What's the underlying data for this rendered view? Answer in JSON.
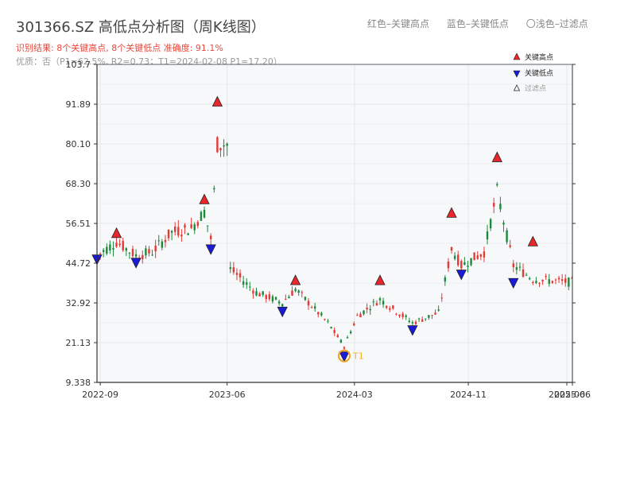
{
  "title": "301366.SZ 高低点分析图（周K线图）",
  "top_legend": {
    "red": "红色–关键高点",
    "blue": "蓝色–关键低点",
    "light": "〇浅色–过滤点"
  },
  "result_text": "识别结果: 8个关键高点, 8个关键低点  准确度: 91.1%",
  "quality_text": "优质：否（P1=62.5%, R2=0.73；T1=2024-02-08 P1=17.20）",
  "colors": {
    "up": "#e53935",
    "down": "#1b8a3a",
    "high": "#e8262b",
    "low": "#1a1adb",
    "t1": "#f0a020"
  },
  "chart_data": {
    "type": "candlestick",
    "x_range": [
      "2022-08-25",
      "2025-06-13"
    ],
    "ylim": [
      9.338,
      103.7
    ],
    "y_ticks": [
      "9.338",
      "21.13",
      "32.92",
      "44.72",
      "56.51",
      "68.30",
      "80.10",
      "91.89",
      "103.7"
    ],
    "x_ticks": [
      {
        "date": "2022-09-01",
        "label": "2022-09"
      },
      {
        "date": "2023-06-01",
        "label": "2023-06"
      },
      {
        "date": "2024-03-01",
        "label": "2024-03"
      },
      {
        "date": "2024-11-01",
        "label": "2024-11"
      },
      {
        "date": "2025-06-01",
        "label": "2025-06"
      },
      {
        "date": "2025-06-13",
        "label": "2025-06"
      }
    ],
    "legend": [
      {
        "label": "关键高点",
        "kind": "high"
      },
      {
        "label": "关键低点",
        "kind": "low"
      },
      {
        "label": "过滤点",
        "kind": "filtered"
      }
    ],
    "key_highs": [
      {
        "date": "2022-10-06",
        "value": 53.5
      },
      {
        "date": "2023-04-13",
        "value": 63.5
      },
      {
        "date": "2023-05-11",
        "value": 92.5
      },
      {
        "date": "2023-10-26",
        "value": 39.5
      },
      {
        "date": "2024-04-25",
        "value": 39.5
      },
      {
        "date": "2024-09-26",
        "value": 59.5
      },
      {
        "date": "2025-01-02",
        "value": 76.0
      },
      {
        "date": "2025-03-20",
        "value": 51.0
      }
    ],
    "key_lows": [
      {
        "date": "2022-08-25",
        "value": 46.0
      },
      {
        "date": "2022-11-17",
        "value": 45.0
      },
      {
        "date": "2023-04-27",
        "value": 49.0
      },
      {
        "date": "2023-09-28",
        "value": 30.5
      },
      {
        "date": "2024-02-08",
        "value": 17.2
      },
      {
        "date": "2024-07-04",
        "value": 25.0
      },
      {
        "date": "2024-10-17",
        "value": 41.5
      },
      {
        "date": "2025-02-06",
        "value": 39.0
      }
    ],
    "t1": {
      "date": "2024-02-08",
      "value": 17.2,
      "label": "T1"
    }
  }
}
